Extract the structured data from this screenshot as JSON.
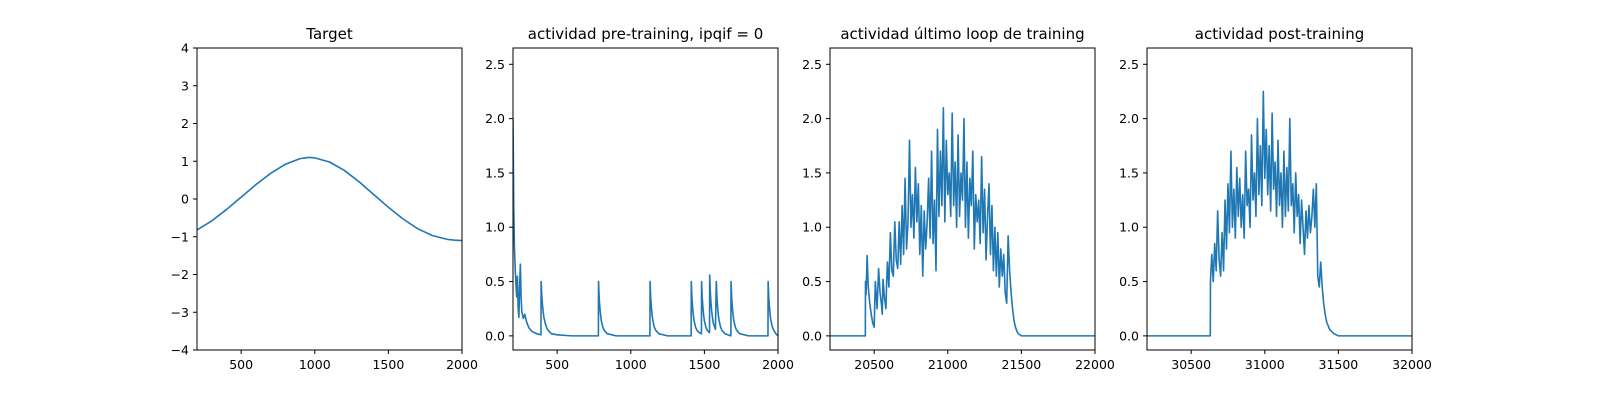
{
  "figure": {
    "background": "#ffffff",
    "line_color": "#1f77b4"
  },
  "chart_data": [
    {
      "type": "line",
      "title": "Target",
      "xlim": [
        200,
        2000
      ],
      "ylim": [
        -4,
        4
      ],
      "xticks": [
        500,
        1000,
        1500,
        2000
      ],
      "yticks": [
        -4,
        -3,
        -2,
        -1,
        0,
        1,
        2,
        3,
        4
      ],
      "series": [
        {
          "x": [
            200,
            300,
            400,
            500,
            600,
            700,
            800,
            900,
            960,
            1000,
            1100,
            1200,
            1300,
            1400,
            1500,
            1600,
            1700,
            1800,
            1900,
            1950,
            2000
          ],
          "y": [
            -0.82,
            -0.58,
            -0.28,
            0.05,
            0.38,
            0.68,
            0.92,
            1.07,
            1.1,
            1.09,
            0.98,
            0.76,
            0.46,
            0.12,
            -0.22,
            -0.53,
            -0.79,
            -0.97,
            -1.07,
            -1.09,
            -1.1
          ]
        }
      ]
    },
    {
      "type": "line",
      "title": "actividad pre-training, ipqif = 0",
      "xlim": [
        200,
        2000
      ],
      "ylim": [
        -0.13,
        2.65
      ],
      "xticks": [
        500,
        1000,
        1500,
        2000
      ],
      "yticks": [
        0.0,
        0.5,
        1.0,
        1.5,
        2.0,
        2.5
      ],
      "series": [
        {
          "x": [
            200,
            205,
            210,
            215,
            220,
            225,
            230,
            235,
            240,
            245,
            250,
            255,
            260,
            270,
            280,
            290,
            300,
            310,
            330,
            360,
            390,
            391,
            395,
            400,
            405,
            410,
            420,
            430,
            440,
            460,
            500,
            600,
            780,
            781,
            785,
            790,
            795,
            800,
            810,
            820,
            840,
            900,
            1000,
            1130,
            1131,
            1135,
            1140,
            1145,
            1150,
            1160,
            1170,
            1190,
            1250,
            1350,
            1410,
            1411,
            1415,
            1420,
            1425,
            1430,
            1440,
            1450,
            1465,
            1480,
            1481,
            1485,
            1490,
            1495,
            1500,
            1510,
            1520,
            1535,
            1536,
            1540,
            1545,
            1550,
            1560,
            1575,
            1581,
            1585,
            1590,
            1595,
            1600,
            1610,
            1620,
            1640,
            1680,
            1681,
            1685,
            1690,
            1695,
            1700,
            1710,
            1720,
            1740,
            1800,
            1900,
            1932,
            1933,
            1937,
            1942,
            1947,
            1952,
            1962,
            1972,
            1985,
            2000
          ],
          "y": [
            2.0,
            1.2,
            0.8,
            0.62,
            0.48,
            0.36,
            0.55,
            0.25,
            0.17,
            0.45,
            0.66,
            0.36,
            0.22,
            0.16,
            0.2,
            0.14,
            0.1,
            0.07,
            0.04,
            0.02,
            0.01,
            0.5,
            0.38,
            0.29,
            0.22,
            0.17,
            0.11,
            0.07,
            0.05,
            0.02,
            0.01,
            0.0,
            0.0,
            0.5,
            0.36,
            0.26,
            0.19,
            0.14,
            0.08,
            0.05,
            0.02,
            0.0,
            0.0,
            0.0,
            0.5,
            0.36,
            0.26,
            0.19,
            0.14,
            0.08,
            0.05,
            0.02,
            0.0,
            0.0,
            0.0,
            0.5,
            0.36,
            0.26,
            0.19,
            0.14,
            0.08,
            0.05,
            0.03,
            0.02,
            0.5,
            0.36,
            0.26,
            0.19,
            0.14,
            0.08,
            0.05,
            0.03,
            0.56,
            0.41,
            0.3,
            0.22,
            0.12,
            0.06,
            0.5,
            0.36,
            0.26,
            0.19,
            0.14,
            0.08,
            0.05,
            0.02,
            0.0,
            0.5,
            0.36,
            0.26,
            0.19,
            0.14,
            0.08,
            0.05,
            0.02,
            0.0,
            0.0,
            0.0,
            0.5,
            0.36,
            0.26,
            0.19,
            0.14,
            0.08,
            0.05,
            0.02,
            0.0
          ]
        }
      ]
    },
    {
      "type": "line",
      "title": "actividad último loop de training",
      "xlim": [
        20200,
        22000
      ],
      "ylim": [
        -0.13,
        2.65
      ],
      "xticks": [
        20500,
        21000,
        21500,
        22000
      ],
      "yticks": [
        0.0,
        0.5,
        1.0,
        1.5,
        2.0,
        2.5
      ],
      "series": [
        {
          "x": [
            20200,
            20300,
            20400,
            20440,
            20441,
            20445,
            20452,
            20460,
            20470,
            20480,
            20490,
            20500,
            20508,
            20515,
            20520,
            20530,
            20540,
            20550,
            20555,
            20560,
            20570,
            20580,
            20585,
            20590,
            20600,
            20610,
            20620,
            20630,
            20640,
            20650,
            20660,
            20670,
            20680,
            20690,
            20700,
            20710,
            20720,
            20730,
            20740,
            20750,
            20760,
            20770,
            20780,
            20790,
            20800,
            20810,
            20820,
            20830,
            20840,
            20850,
            20860,
            20870,
            20880,
            20890,
            20900,
            20910,
            20920,
            20930,
            20940,
            20950,
            20960,
            20970,
            20980,
            20990,
            21000,
            21010,
            21020,
            21030,
            21040,
            21050,
            21060,
            21070,
            21080,
            21090,
            21100,
            21110,
            21120,
            21130,
            21140,
            21150,
            21160,
            21170,
            21180,
            21190,
            21200,
            21210,
            21220,
            21230,
            21240,
            21250,
            21260,
            21270,
            21280,
            21290,
            21300,
            21310,
            21320,
            21330,
            21340,
            21350,
            21360,
            21370,
            21380,
            21390,
            21400,
            21410,
            21420,
            21430,
            21440,
            21450,
            21460,
            21470,
            21480,
            21500,
            21600,
            21800,
            22000
          ],
          "y": [
            0.0,
            0.0,
            0.0,
            0.0,
            0.5,
            0.38,
            0.74,
            0.45,
            0.3,
            0.2,
            0.12,
            0.08,
            0.5,
            0.35,
            0.25,
            0.62,
            0.4,
            0.28,
            0.2,
            0.52,
            0.35,
            0.25,
            0.5,
            0.68,
            0.45,
            0.95,
            0.6,
            0.55,
            1.05,
            0.7,
            0.62,
            1.05,
            0.66,
            1.2,
            0.75,
            1.45,
            0.8,
            1.05,
            1.8,
            1.0,
            1.3,
            0.9,
            1.55,
            1.05,
            1.4,
            0.75,
            1.2,
            0.55,
            1.15,
            0.8,
            1.05,
            1.45,
            0.9,
            1.7,
            0.85,
            1.25,
            0.6,
            1.9,
            1.1,
            1.7,
            1.2,
            2.1,
            1.05,
            1.8,
            1.3,
            1.5,
            1.1,
            2.05,
            1.2,
            1.6,
            1.0,
            1.85,
            1.1,
            1.5,
            1.25,
            2.0,
            1.0,
            1.6,
            0.9,
            1.45,
            1.2,
            1.7,
            0.8,
            1.3,
            1.05,
            1.25,
            0.85,
            1.65,
            0.95,
            1.35,
            0.7,
            1.1,
            1.4,
            0.75,
            1.2,
            0.6,
            1.0,
            0.55,
            0.95,
            0.45,
            0.8,
            0.55,
            0.75,
            0.4,
            0.3,
            0.92,
            0.6,
            0.4,
            0.25,
            0.14,
            0.08,
            0.04,
            0.02,
            0.0,
            0.0,
            0.0,
            0.0
          ]
        }
      ]
    },
    {
      "type": "line",
      "title": "actividad post-training",
      "xlim": [
        30200,
        32000
      ],
      "ylim": [
        -0.13,
        2.65
      ],
      "xticks": [
        30500,
        31000,
        31500,
        32000
      ],
      "yticks": [
        0.0,
        0.5,
        1.0,
        1.5,
        2.0,
        2.5
      ],
      "series": [
        {
          "x": [
            30200,
            30400,
            30600,
            30630,
            30631,
            30640,
            30650,
            30660,
            30670,
            30680,
            30690,
            30700,
            30710,
            30720,
            30730,
            30740,
            30750,
            30760,
            30770,
            30780,
            30790,
            30800,
            30810,
            30820,
            30830,
            30840,
            30850,
            30860,
            30870,
            30880,
            30890,
            30900,
            30910,
            30920,
            30930,
            30940,
            30950,
            30960,
            30970,
            30980,
            30990,
            31000,
            31010,
            31020,
            31030,
            31040,
            31050,
            31060,
            31070,
            31080,
            31090,
            31100,
            31110,
            31120,
            31130,
            31140,
            31150,
            31160,
            31170,
            31180,
            31190,
            31200,
            31210,
            31220,
            31230,
            31240,
            31250,
            31260,
            31270,
            31280,
            31290,
            31300,
            31310,
            31320,
            31330,
            31340,
            31350,
            31360,
            31370,
            31380,
            31390,
            31400,
            31410,
            31420,
            31440,
            31470,
            31500,
            31600,
            31800,
            32000
          ],
          "y": [
            0.0,
            0.0,
            0.0,
            0.0,
            0.5,
            0.75,
            0.5,
            0.85,
            0.6,
            1.15,
            0.7,
            0.55,
            0.95,
            0.6,
            1.25,
            0.8,
            1.4,
            0.95,
            1.7,
            1.0,
            1.35,
            0.9,
            1.55,
            1.1,
            1.45,
            1.0,
            1.3,
            0.9,
            1.7,
            1.2,
            1.35,
            1.0,
            1.85,
            1.25,
            1.5,
            1.1,
            2.0,
            1.3,
            1.75,
            1.2,
            2.25,
            1.45,
            1.9,
            1.3,
            1.75,
            1.15,
            2.05,
            1.35,
            1.6,
            1.1,
            1.8,
            1.2,
            1.5,
            1.0,
            1.7,
            1.1,
            1.55,
            1.15,
            2.0,
            1.2,
            1.4,
            0.95,
            1.5,
            1.1,
            1.3,
            0.85,
            1.25,
            1.0,
            0.75,
            1.15,
            0.9,
            1.2,
            0.95,
            1.1,
            1.35,
            1.0,
            1.4,
            0.55,
            0.45,
            0.68,
            0.45,
            0.3,
            0.2,
            0.13,
            0.06,
            0.02,
            0.0,
            0.0,
            0.0,
            0.0
          ]
        }
      ]
    }
  ]
}
